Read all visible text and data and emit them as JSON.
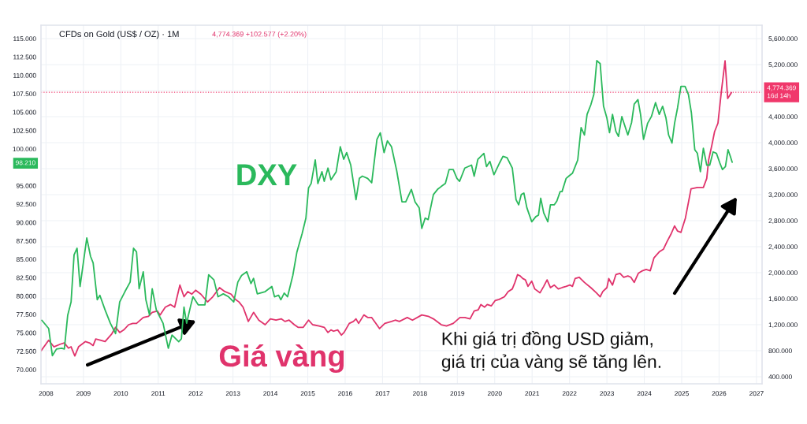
{
  "chart_data": {
    "type": "line",
    "title": "CFDs on Gold (US$ / OZ) · 1M",
    "xlim": [
      2007.865,
      2027.15
    ],
    "xticks": [
      2008,
      2009,
      2010,
      2011,
      2012,
      2013,
      2014,
      2015,
      2016,
      2017,
      2018,
      2019,
      2020,
      2021,
      2022,
      2023,
      2024,
      2025,
      2026,
      2027
    ],
    "ylim": [
      68.07,
      116.82
    ],
    "yticks": [
      {
        "value": 70,
        "label": "70.000"
      },
      {
        "value": 72.5,
        "label": "72.500"
      },
      {
        "value": 75,
        "label": "75.000"
      },
      {
        "value": 77.5,
        "label": "77.500"
      },
      {
        "value": 80,
        "label": "80.000"
      },
      {
        "value": 82.5,
        "label": "82.500"
      },
      {
        "value": 85,
        "label": "85.000"
      },
      {
        "value": 87.5,
        "label": "87.500"
      },
      {
        "value": 90,
        "label": "90.000"
      },
      {
        "value": 92.5,
        "label": "92.500"
      },
      {
        "value": 95,
        "label": "95.000"
      },
      {
        "value": 97.5,
        "label": null
      },
      {
        "value": 100,
        "label": "100.000"
      },
      {
        "value": 102.5,
        "label": "102.500"
      },
      {
        "value": 105,
        "label": "105.000"
      },
      {
        "value": 107.5,
        "label": "107.500"
      },
      {
        "value": 110,
        "label": "110.000"
      },
      {
        "value": 112.5,
        "label": "112.500"
      },
      {
        "value": 115,
        "label": "115.000"
      }
    ],
    "y2lim": [
      291,
      5806
    ],
    "y2ticks": [
      {
        "value": 400,
        "label": "400.000"
      },
      {
        "value": 800,
        "label": "800.000"
      },
      {
        "value": 1200,
        "label": "1,200.000"
      },
      {
        "value": 1600,
        "label": "1,600.000"
      },
      {
        "value": 2000,
        "label": "2,000.000"
      },
      {
        "value": 2400,
        "label": "2,400.000"
      },
      {
        "value": 2800,
        "label": "2,800.000"
      },
      {
        "value": 3200,
        "label": "3,200.000"
      },
      {
        "value": 3600,
        "label": "3,600.000"
      },
      {
        "value": 4000,
        "label": "4,000.000"
      },
      {
        "value": 4400,
        "label": "4,400.000"
      },
      {
        "value": 4800,
        "label": null
      },
      {
        "value": 5200,
        "label": "5,200.000"
      },
      {
        "value": 5600,
        "label": "5,600.000"
      }
    ],
    "grid": true,
    "series": [
      {
        "name": "DXY",
        "color": "#2bb95c",
        "axis": "y",
        "x": [
          2007.89,
          2008.07,
          2008.17,
          2008.28,
          2008.42,
          2008.49,
          2008.58,
          2008.67,
          2008.75,
          2008.83,
          2008.91,
          2009.09,
          2009.19,
          2009.26,
          2009.37,
          2009.44,
          2009.58,
          2009.72,
          2009.86,
          2009.97,
          2010.11,
          2010.25,
          2010.34,
          2010.42,
          2010.49,
          2010.6,
          2010.67,
          2010.77,
          2010.84,
          2010.95,
          2011.13,
          2011.27,
          2011.37,
          2011.55,
          2011.62,
          2011.69,
          2011.76,
          2011.86,
          2011.93,
          2012.07,
          2012.25,
          2012.35,
          2012.49,
          2012.6,
          2012.74,
          2012.88,
          2013.02,
          2013.13,
          2013.23,
          2013.37,
          2013.48,
          2013.55,
          2013.65,
          2013.86,
          2014.04,
          2014.11,
          2014.22,
          2014.28,
          2014.37,
          2014.46,
          2014.6,
          2014.71,
          2014.85,
          2014.95,
          2015.02,
          2015.09,
          2015.2,
          2015.27,
          2015.38,
          2015.44,
          2015.54,
          2015.62,
          2015.76,
          2015.87,
          2015.96,
          2016.04,
          2016.15,
          2016.29,
          2016.38,
          2016.46,
          2016.6,
          2016.71,
          2016.85,
          2016.94,
          2017.04,
          2017.13,
          2017.24,
          2017.38,
          2017.52,
          2017.62,
          2017.77,
          2017.87,
          2017.98,
          2018.05,
          2018.14,
          2018.22,
          2018.36,
          2018.47,
          2018.57,
          2018.68,
          2018.78,
          2018.89,
          2018.99,
          2019.06,
          2019.2,
          2019.38,
          2019.45,
          2019.55,
          2019.71,
          2019.78,
          2019.87,
          2019.98,
          2020.13,
          2020.22,
          2020.33,
          2020.47,
          2020.57,
          2020.64,
          2020.71,
          2020.78,
          2020.86,
          2020.99,
          2021.1,
          2021.17,
          2021.23,
          2021.31,
          2021.42,
          2021.49,
          2021.59,
          2021.66,
          2021.75,
          2021.8,
          2021.91,
          2021.98,
          2022.08,
          2022.15,
          2022.22,
          2022.31,
          2022.4,
          2022.47,
          2022.57,
          2022.65,
          2022.73,
          2022.82,
          2022.91,
          2023.0,
          2023.07,
          2023.15,
          2023.24,
          2023.31,
          2023.4,
          2023.47,
          2023.56,
          2023.66,
          2023.73,
          2023.83,
          2023.9,
          2023.98,
          2024.09,
          2024.19,
          2024.3,
          2024.4,
          2024.49,
          2024.58,
          2024.65,
          2024.74,
          2024.81,
          2024.89,
          2024.98,
          2025.09,
          2025.18,
          2025.26,
          2025.35,
          2025.42,
          2025.5,
          2025.58,
          2025.67,
          2025.75,
          2025.84,
          2025.93,
          2026.02,
          2026.09,
          2026.17,
          2026.24,
          2026.3,
          2026.35
        ],
        "values": [
          76.7,
          75.6,
          71.9,
          72.8,
          72.9,
          72.8,
          77.4,
          79.2,
          85.6,
          86.5,
          81.3,
          87.9,
          85.4,
          84.5,
          79.5,
          80.1,
          78.1,
          76.3,
          74.9,
          79.2,
          80.6,
          81.9,
          86.5,
          86.0,
          81.0,
          83.3,
          79.5,
          77.4,
          81.0,
          78.1,
          76.3,
          72.9,
          74.7,
          73.8,
          74.2,
          78.5,
          76.3,
          78.5,
          79.9,
          78.8,
          78.8,
          82.9,
          82.2,
          79.9,
          80.3,
          79.9,
          79.2,
          81.9,
          82.8,
          83.3,
          81.7,
          82.4,
          80.3,
          80.6,
          81.3,
          79.9,
          80.1,
          79.5,
          80.4,
          79.9,
          82.8,
          86.0,
          88.5,
          90.6,
          94.7,
          95.3,
          98.5,
          95.3,
          96.9,
          95.6,
          97.4,
          95.8,
          96.9,
          100.3,
          98.6,
          99.5,
          97.8,
          93.1,
          96.0,
          96.3,
          96.0,
          95.4,
          101.3,
          102.2,
          99.5,
          101.1,
          100.3,
          97.0,
          92.8,
          92.8,
          94.5,
          92.8,
          92.0,
          89.2,
          90.6,
          90.4,
          93.8,
          94.5,
          94.9,
          95.3,
          97.2,
          97.2,
          96.0,
          95.6,
          97.4,
          97.8,
          96.3,
          98.6,
          99.4,
          97.6,
          98.3,
          96.5,
          98.1,
          99.0,
          98.8,
          97.4,
          93.1,
          92.4,
          93.8,
          94.0,
          92.0,
          90.1,
          90.8,
          91.0,
          93.3,
          91.3,
          90.1,
          92.4,
          92.4,
          92.9,
          94.2,
          94.2,
          96.0,
          96.3,
          96.7,
          97.6,
          98.5,
          102.9,
          101.9,
          104.7,
          106.0,
          107.4,
          112.0,
          111.6,
          105.8,
          104.2,
          102.2,
          104.7,
          102.4,
          101.7,
          104.4,
          103.3,
          101.9,
          103.6,
          106.1,
          106.7,
          104.7,
          101.3,
          103.5,
          104.4,
          106.3,
          104.7,
          105.8,
          104.2,
          101.9,
          100.8,
          103.5,
          105.6,
          108.5,
          108.5,
          107.4,
          104.9,
          99.9,
          99.4,
          96.9,
          100.1,
          97.8,
          97.8,
          99.6,
          99.4,
          98.1,
          97.2,
          97.6,
          99.9,
          99.0,
          98.2
        ]
      },
      {
        "name": "Giá vàng",
        "color": "#e0336c",
        "axis": "y2",
        "x": [
          2007.87,
          2008.07,
          2008.21,
          2008.38,
          2008.49,
          2008.6,
          2008.67,
          2008.77,
          2008.87,
          2009.05,
          2009.16,
          2009.26,
          2009.33,
          2009.47,
          2009.58,
          2009.76,
          2009.86,
          2009.97,
          2010.08,
          2010.21,
          2010.32,
          2010.42,
          2010.6,
          2010.74,
          2010.84,
          2010.98,
          2011.05,
          2011.19,
          2011.33,
          2011.44,
          2011.58,
          2011.69,
          2011.79,
          2011.9,
          2012.0,
          2012.14,
          2012.32,
          2012.46,
          2012.64,
          2012.78,
          2012.95,
          2013.06,
          2013.16,
          2013.27,
          2013.41,
          2013.55,
          2013.69,
          2013.86,
          2014.0,
          2014.15,
          2014.29,
          2014.39,
          2014.5,
          2014.64,
          2014.74,
          2014.88,
          2015.02,
          2015.13,
          2015.3,
          2015.44,
          2015.54,
          2015.62,
          2015.69,
          2015.8,
          2015.9,
          2015.97,
          2016.11,
          2016.22,
          2016.29,
          2016.36,
          2016.5,
          2016.61,
          2016.71,
          2016.82,
          2016.92,
          2017.06,
          2017.24,
          2017.34,
          2017.45,
          2017.66,
          2017.8,
          2018.05,
          2018.22,
          2018.36,
          2018.57,
          2018.71,
          2018.89,
          2019.07,
          2019.2,
          2019.34,
          2019.45,
          2019.56,
          2019.63,
          2019.73,
          2019.8,
          2019.91,
          2020.01,
          2020.12,
          2020.26,
          2020.36,
          2020.47,
          2020.54,
          2020.61,
          2020.68,
          2020.75,
          2020.82,
          2020.89,
          2020.99,
          2021.07,
          2021.21,
          2021.31,
          2021.4,
          2021.49,
          2021.59,
          2021.7,
          2021.8,
          2021.91,
          2022.01,
          2022.08,
          2022.15,
          2022.26,
          2022.4,
          2022.57,
          2022.72,
          2022.82,
          2022.89,
          2023.0,
          2023.05,
          2023.15,
          2023.24,
          2023.35,
          2023.45,
          2023.56,
          2023.64,
          2023.73,
          2023.84,
          2023.95,
          2024.05,
          2024.16,
          2024.26,
          2024.4,
          2024.51,
          2024.61,
          2024.72,
          2024.81,
          2024.89,
          2024.98,
          2025.1,
          2025.25,
          2025.42,
          2025.58,
          2025.67,
          2025.72,
          2025.81,
          2025.88,
          2025.97,
          2026.06,
          2026.16,
          2026.23,
          2026.33
        ],
        "values": [
          800,
          960,
          860,
          900,
          920,
          840,
          860,
          720,
          860,
          940,
          920,
          880,
          980,
          960,
          940,
          1060,
          1160,
          1080,
          1120,
          1200,
          1220,
          1220,
          1310,
          1330,
          1390,
          1410,
          1350,
          1470,
          1510,
          1470,
          1810,
          1630,
          1710,
          1670,
          1730,
          1670,
          1550,
          1630,
          1770,
          1710,
          1670,
          1590,
          1550,
          1470,
          1250,
          1390,
          1270,
          1200,
          1290,
          1270,
          1290,
          1250,
          1270,
          1200,
          1160,
          1160,
          1270,
          1200,
          1180,
          1160,
          1080,
          1120,
          1100,
          1120,
          1040,
          1080,
          1220,
          1250,
          1290,
          1220,
          1350,
          1310,
          1310,
          1220,
          1140,
          1220,
          1250,
          1270,
          1250,
          1310,
          1270,
          1350,
          1330,
          1290,
          1200,
          1180,
          1220,
          1310,
          1310,
          1290,
          1410,
          1430,
          1510,
          1470,
          1510,
          1490,
          1570,
          1590,
          1630,
          1710,
          1750,
          1850,
          1970,
          1950,
          1910,
          1890,
          1790,
          1870,
          1750,
          1690,
          1790,
          1890,
          1770,
          1810,
          1750,
          1770,
          1790,
          1810,
          1790,
          1910,
          1930,
          1850,
          1770,
          1690,
          1630,
          1710,
          1770,
          1910,
          1810,
          1970,
          1990,
          1930,
          1950,
          1930,
          1850,
          1990,
          2030,
          2050,
          2030,
          2230,
          2320,
          2360,
          2480,
          2600,
          2720,
          2640,
          2620,
          2840,
          3290,
          3310,
          3310,
          3450,
          3730,
          3970,
          4170,
          4300,
          4780,
          5260,
          4680,
          4770
        ]
      }
    ],
    "ref_lines": [
      {
        "axis": "y2",
        "value": 4774.369,
        "label": "4,774.369\n16d 14h",
        "color": "#f0386b",
        "line_style": "dotted"
      }
    ],
    "annotations": [
      "4,774.369 +102.577 (+2.20%)",
      "Khi giá trị đồng USD giảm,\ngiá trị của vàng sẽ tăng lên.",
      "98.210"
    ]
  }
}
